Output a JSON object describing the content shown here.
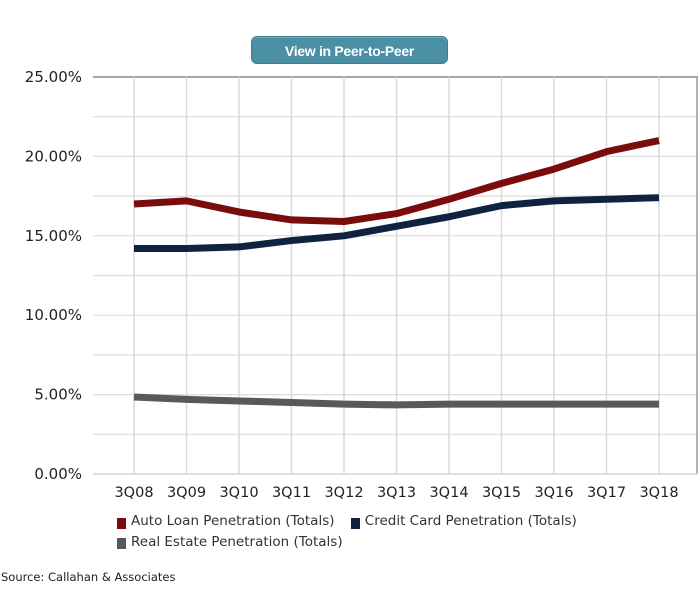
{
  "toolbar": {
    "peer_button_label": "View in Peer-to-Peer",
    "peer_button_color": "#4a8fa3"
  },
  "chart_data": {
    "type": "line",
    "title": "",
    "xlabel": "",
    "ylabel": "",
    "categories": [
      "3Q08",
      "3Q09",
      "3Q10",
      "3Q11",
      "3Q12",
      "3Q13",
      "3Q14",
      "3Q15",
      "3Q16",
      "3Q17",
      "3Q18"
    ],
    "ylim": [
      0,
      25
    ],
    "yticks": [
      0,
      5,
      10,
      15,
      20,
      25
    ],
    "ytick_labels": [
      "0.00%",
      "5.00%",
      "10.00%",
      "15.00%",
      "20.00%",
      "25.00%"
    ],
    "grid": true,
    "grid_minor_step": 2.5,
    "legend_position": "bottom",
    "series": [
      {
        "name": "Auto Loan Penetration (Totals)",
        "color": "#7a0c0c",
        "values": [
          17.0,
          17.2,
          16.5,
          16.0,
          15.9,
          16.4,
          17.3,
          18.3,
          19.2,
          20.3,
          21.0
        ]
      },
      {
        "name": "Credit Card Penetration (Totals)",
        "color": "#0f2340",
        "values": [
          14.2,
          14.2,
          14.3,
          14.7,
          15.0,
          15.6,
          16.2,
          16.9,
          17.2,
          17.3,
          17.4
        ]
      },
      {
        "name": "Real Estate Penetration (Totals)",
        "color": "#58595b",
        "values": [
          4.85,
          4.7,
          4.6,
          4.5,
          4.4,
          4.35,
          4.4,
          4.4,
          4.4,
          4.4,
          4.4
        ]
      }
    ]
  },
  "legend": {
    "items": [
      {
        "label": "Auto Loan Penetration (Totals)",
        "color": "#7a0c0c"
      },
      {
        "label": "Credit Card Penetration (Totals)",
        "color": "#0f2340"
      },
      {
        "label": "Real Estate Penetration (Totals)",
        "color": "#58595b"
      }
    ]
  },
  "footer": {
    "source": "Source: Callahan & Associates"
  }
}
